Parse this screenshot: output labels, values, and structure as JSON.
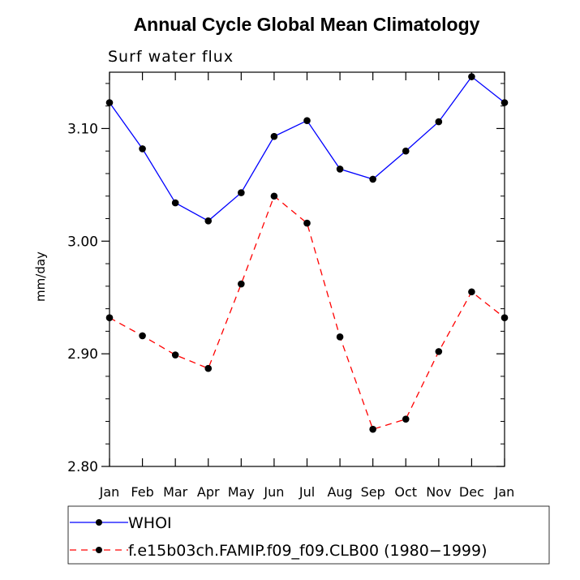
{
  "chart_data": {
    "type": "line",
    "title": "Annual Cycle Global Mean Climatology",
    "subtitle": "Surf water flux",
    "xlabel": "",
    "ylabel": "mm/day",
    "categories": [
      "Jan",
      "Feb",
      "Mar",
      "Apr",
      "May",
      "Jun",
      "Jul",
      "Aug",
      "Sep",
      "Oct",
      "Nov",
      "Dec",
      "Jan"
    ],
    "ylim": [
      2.8,
      3.15
    ],
    "yticks": [
      2.8,
      2.9,
      3.0,
      3.1
    ],
    "ytick_labels": [
      "2.80",
      "2.90",
      "3.00",
      "3.10"
    ],
    "grid": false,
    "legend_position": "below",
    "series": [
      {
        "name": "WHOI",
        "color": "#0000ff",
        "dash": "solid",
        "values": [
          3.123,
          3.082,
          3.034,
          3.018,
          3.043,
          3.093,
          3.107,
          3.064,
          3.055,
          3.08,
          3.106,
          3.146,
          3.123
        ]
      },
      {
        "name": "f.e15b03ch.FAMIP.f09_f09.CLB00 (1980−1999)",
        "color": "#ff0000",
        "dash": "dashed",
        "values": [
          2.932,
          2.916,
          2.899,
          2.887,
          2.962,
          3.04,
          3.016,
          2.915,
          2.833,
          2.842,
          2.902,
          2.955,
          2.932
        ]
      }
    ]
  }
}
